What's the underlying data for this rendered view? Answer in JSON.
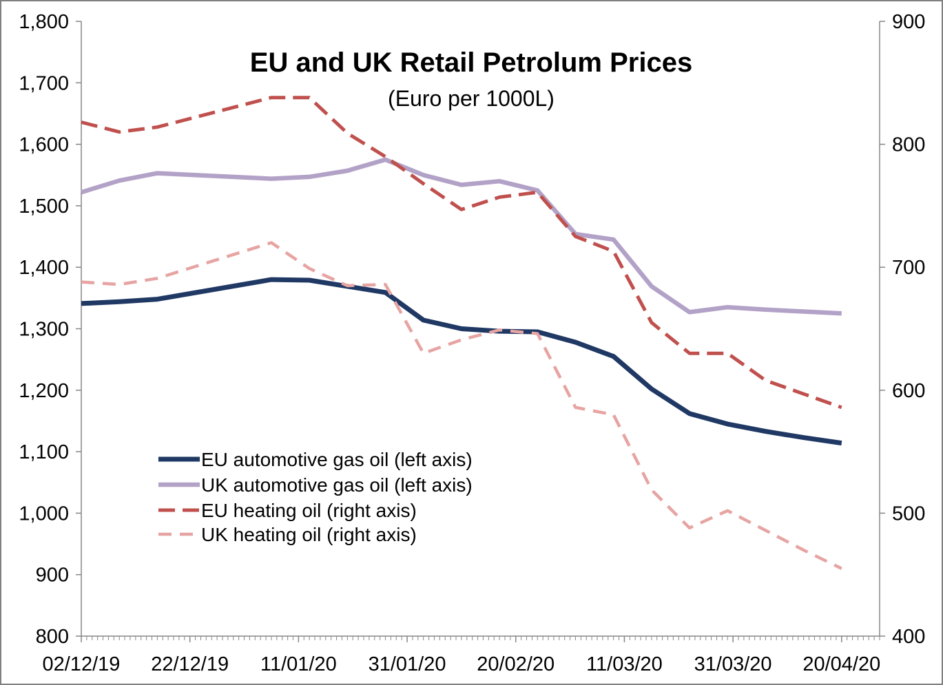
{
  "chart_data": {
    "type": "line",
    "title": "EU and UK Retail Petrolum Prices",
    "subtitle": "(Euro per 1000L)",
    "x": [
      "02/12/19",
      "09/12/19",
      "16/12/19",
      "06/01/20",
      "13/01/20",
      "20/01/20",
      "27/01/20",
      "03/02/20",
      "10/02/20",
      "17/02/20",
      "24/02/20",
      "02/03/20",
      "09/03/20",
      "16/03/20",
      "23/03/20",
      "30/03/20",
      "06/04/20",
      "13/04/20",
      "20/04/20"
    ],
    "x_tick_labels": [
      "02/12/19",
      "22/12/19",
      "11/01/20",
      "31/01/20",
      "20/02/20",
      "11/03/20",
      "31/03/20",
      "20/04/20"
    ],
    "xlim": [
      "02/12/19",
      "27/04/20"
    ],
    "y_left": {
      "lim": [
        800,
        1800
      ],
      "tick_labels": [
        "800",
        "900",
        "1,000",
        "1,100",
        "1,200",
        "1,300",
        "1,400",
        "1,500",
        "1,600",
        "1,700",
        "1,800"
      ]
    },
    "y_right": {
      "lim": [
        400,
        900
      ],
      "tick_labels": [
        "400",
        "500",
        "600",
        "700",
        "800",
        "900"
      ]
    },
    "grid": false,
    "legend_position": "lower-left",
    "series": [
      {
        "name": "EU automotive gas oil (left axis)",
        "axis": "left",
        "color": "#1F3864",
        "line_style": "solid",
        "values": [
          1341,
          1344,
          1348,
          1380,
          1379,
          1369,
          1359,
          1314,
          1300,
          1296,
          1295,
          1278,
          1255,
          1202,
          1162,
          1145,
          1133,
          1123,
          1114
        ]
      },
      {
        "name": "UK automotive gas oil (left axis)",
        "axis": "left",
        "color": "#B3A2C7",
        "line_style": "solid",
        "values": [
          1522,
          1541,
          1553,
          1544,
          1547,
          1557,
          1575,
          1550,
          1534,
          1540,
          1525,
          1454,
          1445,
          1369,
          1327,
          1335,
          1331,
          1328,
          1325
        ]
      },
      {
        "name": "EU heating oil (right axis)",
        "axis": "right",
        "color": "#C0504D",
        "line_style": "dashed",
        "values": [
          818,
          810,
          814,
          838,
          838,
          809,
          790,
          768,
          747,
          757,
          761,
          725,
          713,
          655,
          630,
          630,
          608,
          597,
          586
        ]
      },
      {
        "name": "UK heating oil (right axis)",
        "axis": "right",
        "color": "#E6A4A2",
        "line_style": "dashed",
        "values": [
          688,
          686,
          691,
          720,
          699,
          685,
          686,
          630,
          641,
          649,
          646,
          586,
          580,
          519,
          488,
          502,
          486,
          470,
          455
        ]
      }
    ]
  }
}
